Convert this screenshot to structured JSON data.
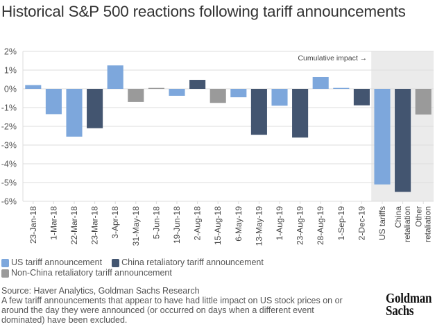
{
  "title": "Historical S&P 500 reactions following tariff announcements",
  "chart_data": {
    "type": "bar",
    "title": "Historical S&P 500 reactions following tariff announcements",
    "xlabel": "",
    "ylabel": "",
    "ylim": [
      -6,
      2
    ],
    "yticks": [
      2,
      1,
      0,
      -1,
      -2,
      -3,
      -4,
      -5,
      -6
    ],
    "ytick_labels": [
      "2%",
      "1%",
      "0%",
      "-1%",
      "-2%",
      "-3%",
      "-4%",
      "-5%",
      "-6%"
    ],
    "grid": true,
    "annotation": "Cumulative impact →",
    "shaded_region_label": "Cumulative impact",
    "categories": [
      "23-Jan-18",
      "1-Mar-18",
      "22-Mar-18",
      "23-Mar-18",
      "3-Apr-18",
      "31-May-18",
      "5-Jun-18",
      "19-Jun-18",
      "2-Aug-18",
      "15-Aug-18",
      "6-May-19",
      "13-May-19",
      "1-Aug-19",
      "23-Aug-19",
      "28-Aug-19",
      "1-Sep-19",
      "2-Dec-19",
      "US tariffs",
      "China retaliation",
      "Other retaliation"
    ],
    "category_lines": [
      [
        "23-Jan-18"
      ],
      [
        "1-Mar-18"
      ],
      [
        "22-Mar-18"
      ],
      [
        "23-Mar-18"
      ],
      [
        "3-Apr-18"
      ],
      [
        "31-May-18"
      ],
      [
        "5-Jun-18"
      ],
      [
        "19-Jun-18"
      ],
      [
        "2-Aug-18"
      ],
      [
        "15-Aug-18"
      ],
      [
        "6-May-19"
      ],
      [
        "13-May-19"
      ],
      [
        "1-Aug-19"
      ],
      [
        "23-Aug-19"
      ],
      [
        "28-Aug-19"
      ],
      [
        "1-Sep-19"
      ],
      [
        "2-Dec-19"
      ],
      [
        "US tariffs"
      ],
      [
        "China",
        "retaliation"
      ],
      [
        "Other",
        "retaliation"
      ]
    ],
    "values": [
      0.2,
      -1.35,
      -2.55,
      -2.1,
      1.25,
      -0.7,
      0.05,
      -0.37,
      0.48,
      -0.75,
      -0.45,
      -2.45,
      -0.9,
      -2.6,
      0.63,
      0.05,
      -0.88,
      -5.1,
      -5.5,
      -1.37
    ],
    "bar_types": [
      "us",
      "us",
      "us",
      "china",
      "us",
      "other",
      "other",
      "us",
      "china",
      "other",
      "us",
      "china",
      "us",
      "china",
      "us",
      "us",
      "china",
      "us",
      "china",
      "other"
    ],
    "cumulative_start_index": 17,
    "legend": [
      {
        "key": "us",
        "label": "US tariff announcement",
        "color": "#7da7dc"
      },
      {
        "key": "china",
        "label": "China retaliatory tariff announcement",
        "color": "#435570"
      },
      {
        "key": "other",
        "label": "Non-China retaliatory tariff announcement",
        "color": "#9a9a9a"
      }
    ],
    "legend_position": "bottom-left"
  },
  "colors": {
    "us": "#7da7dc",
    "china": "#435570",
    "other": "#9a9a9a",
    "cumulative_bg": "#ebebeb"
  },
  "footer": {
    "source": "Source: Haver Analytics, Goldman Sachs Research",
    "note": "A few tariff announcements that appear to have had little impact on US stock prices on or around the day they were announced (or occurred on days when a different event dominated) have been excluded."
  },
  "logo": {
    "line1": "Goldman",
    "line2": "Sachs"
  }
}
